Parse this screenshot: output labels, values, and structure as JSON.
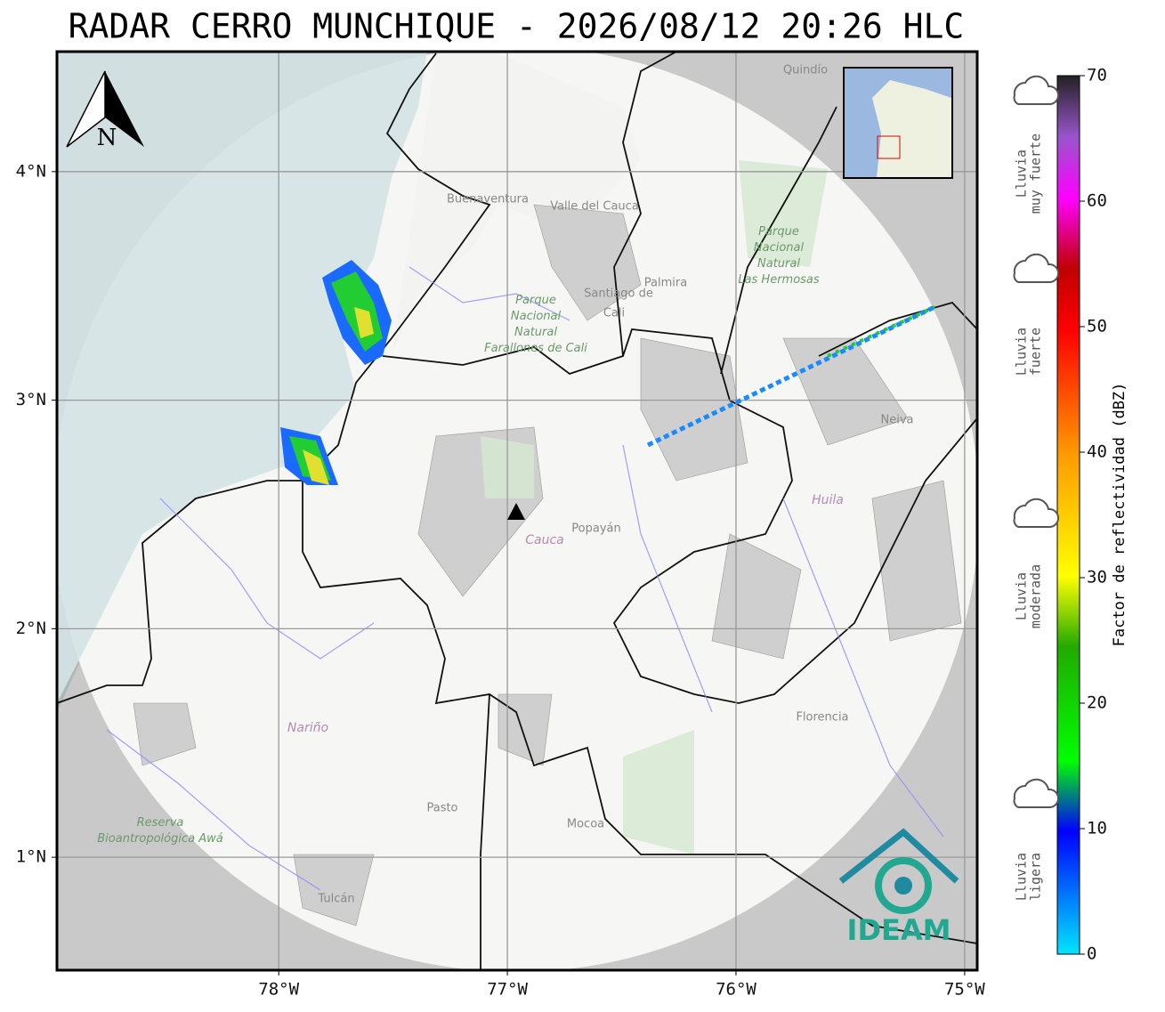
{
  "title": "RADAR CERRO MUNCHIQUE - 2026/08/12 20:26 HLC",
  "map": {
    "xlim": [
      -78.97,
      -74.945
    ],
    "ylim": [
      0.506,
      4.525
    ],
    "xticks": [
      {
        "value": -78,
        "label": "78°W"
      },
      {
        "value": -77,
        "label": "77°W"
      },
      {
        "value": -76,
        "label": "76°W"
      },
      {
        "value": -75,
        "label": "75°W"
      }
    ],
    "yticks": [
      {
        "value": 1,
        "label": "1°N"
      },
      {
        "value": 2,
        "label": "2°N"
      },
      {
        "value": 3,
        "label": "3°N"
      },
      {
        "value": 4,
        "label": "4°N"
      }
    ],
    "north": "N",
    "logo": "IDEAM",
    "places": [
      "Buenaventura",
      "Valle del Cauca",
      "Santiago de",
      "Cali",
      "Palmira",
      "Quindío",
      "Parque Nacional Natural Las Hermosas",
      "Parque Nacional Natural Farallones de Cali",
      "Neiva",
      "Huila",
      "Cauca",
      "Popayán",
      "Nariño",
      "Pasto",
      "Mocoa",
      "Florencia",
      "Tulcán",
      "Reserva Bioantropológica Awá"
    ]
  },
  "colorbar": {
    "label": "Factor de reflectividad (dBZ)",
    "ylim": [
      0,
      70
    ],
    "yticks": [
      0,
      10,
      20,
      30,
      40,
      50,
      60,
      70
    ]
  },
  "legend": [
    [
      "Lluvia",
      "muy fuerte"
    ],
    [
      "Lluvia",
      "fuerte"
    ],
    [
      "Lluvia",
      "moderada"
    ],
    [
      "Lluvia",
      "ligera"
    ]
  ]
}
